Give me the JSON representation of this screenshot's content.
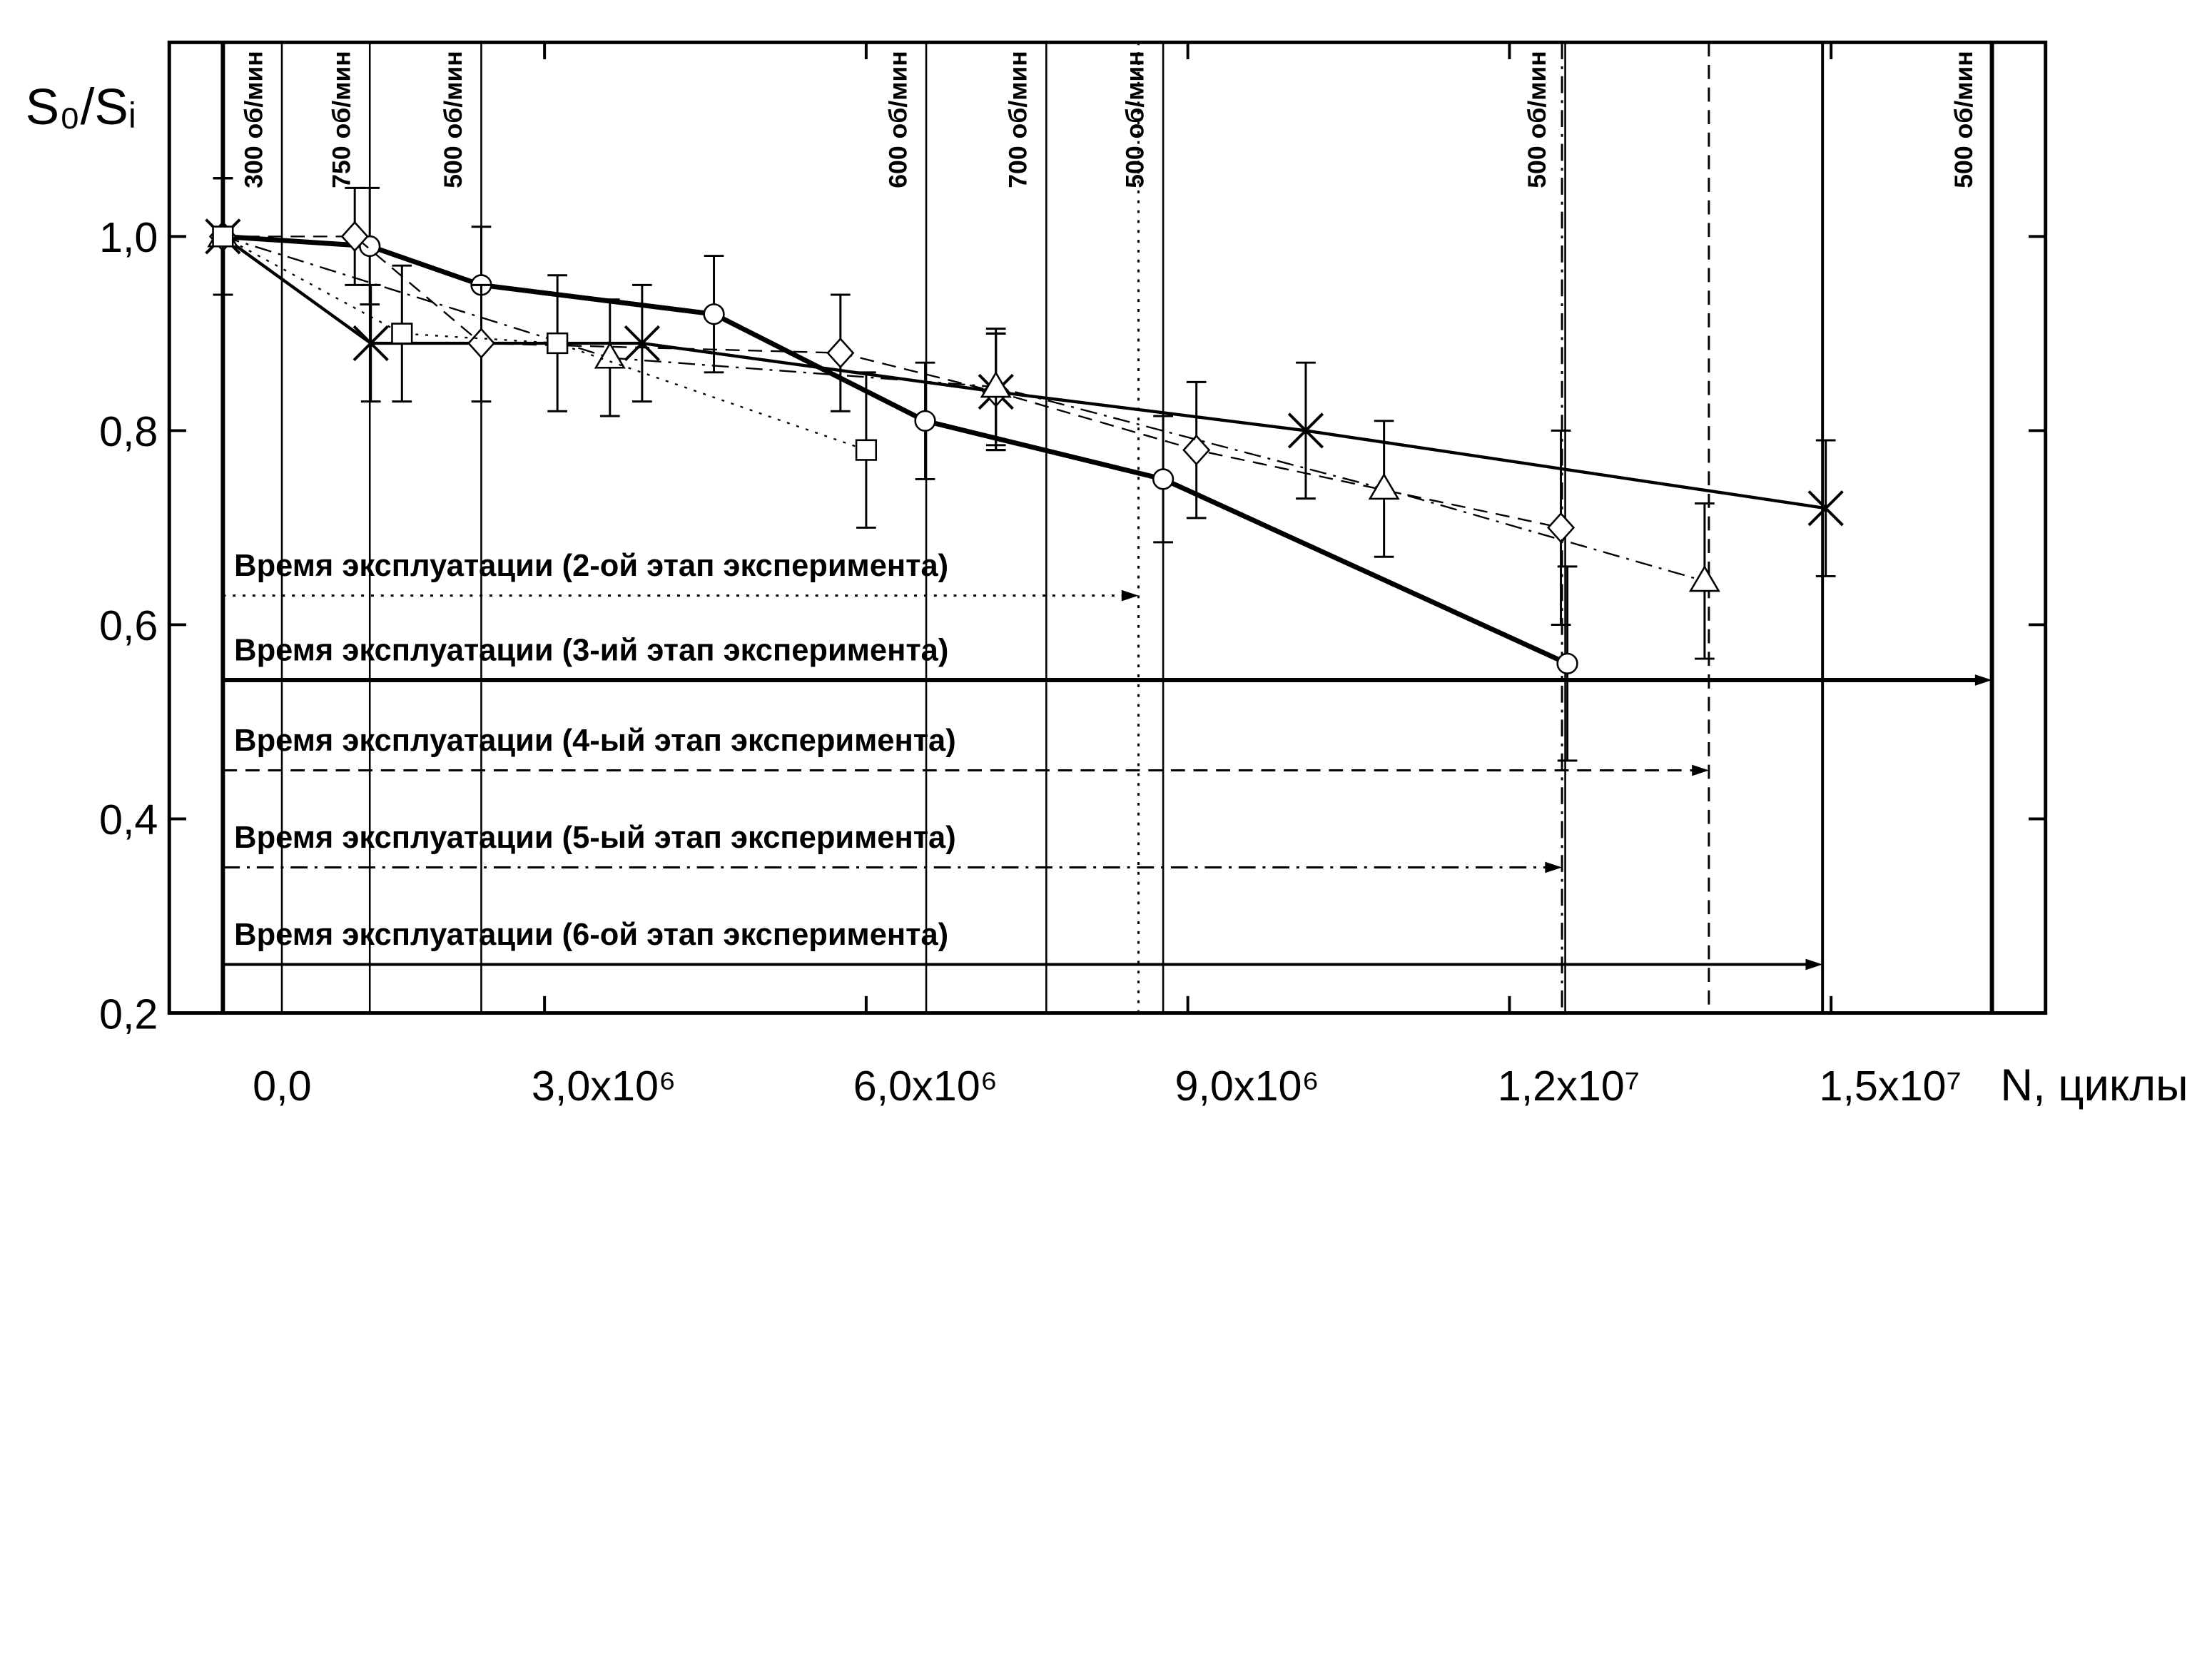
{
  "chart_data": {
    "type": "line",
    "y_label": "S₀/Sᵢ",
    "x_label": "N, циклы",
    "xlim": [
      -500000,
      17000000
    ],
    "ylim": [
      0.2,
      1.2
    ],
    "xticks": [
      {
        "value": 0,
        "label": "0,0"
      },
      {
        "value": 3000000,
        "label": "3,0x10⁶"
      },
      {
        "value": 6000000,
        "label": "6,0x10⁶"
      },
      {
        "value": 9000000,
        "label": "9,0x10⁶"
      },
      {
        "value": 12000000,
        "label": "1,2x10⁷"
      },
      {
        "value": 15000000,
        "label": "1,5x10⁷"
      }
    ],
    "yticks": [
      {
        "value": 0.2,
        "label": "0,2"
      },
      {
        "value": 0.4,
        "label": "0,4"
      },
      {
        "value": 0.6,
        "label": "0,6"
      },
      {
        "value": 0.8,
        "label": "0,8"
      },
      {
        "value": 1.0,
        "label": "1,0"
      }
    ],
    "color": "#000000",
    "series": [
      {
        "marker": "circle",
        "line": "solid",
        "width": 3.5,
        "x": [
          0,
          1370000,
          2410000,
          4580000,
          6550000,
          8770000,
          12540000
        ],
        "values": [
          1.0,
          0.99,
          0.95,
          0.92,
          0.81,
          0.75,
          0.56
        ],
        "errors": [
          0.06,
          0.06,
          0.06,
          0.06,
          0.06,
          0.065,
          0.1
        ]
      },
      {
        "marker": "cross",
        "line": "solid",
        "width": 2.2,
        "x": [
          0,
          1380000,
          3910000,
          7210000,
          10100000,
          14950000
        ],
        "values": [
          1.0,
          0.89,
          0.89,
          0.84,
          0.8,
          0.72
        ],
        "errors": [
          0.06,
          0.06,
          0.06,
          0.06,
          0.07,
          0.07
        ]
      },
      {
        "marker": "diamond",
        "line": "dashed",
        "width": 1.2,
        "x": [
          0,
          1230000,
          2410000,
          5760000,
          7210000,
          9080000,
          12480000
        ],
        "values": [
          1.0,
          1.0,
          0.89,
          0.88,
          0.84,
          0.78,
          0.7
        ],
        "errors": [
          0.06,
          0.05,
          0.06,
          0.06,
          0.06,
          0.07,
          0.1
        ]
      },
      {
        "marker": "triangle",
        "line": "dash-dot",
        "width": 1.2,
        "x": [
          0,
          3610000,
          7210000,
          10830000,
          13820000
        ],
        "values": [
          1.0,
          0.875,
          0.845,
          0.74,
          0.645
        ],
        "errors": [
          0.06,
          0.06,
          0.06,
          0.07,
          0.08
        ]
      },
      {
        "marker": "square",
        "line": "dotted",
        "width": 1.2,
        "x": [
          0,
          1670000,
          3120000,
          6000000
        ],
        "values": [
          1.0,
          0.9,
          0.89,
          0.78
        ],
        "errors": [
          0.06,
          0.07,
          0.07,
          0.08
        ]
      }
    ],
    "speed_changes": [
      {
        "x": 550000,
        "label": "300 об/мин"
      },
      {
        "x": 1370000,
        "label": "750 об/мин"
      },
      {
        "x": 2410000,
        "label": "500 об/мин"
      },
      {
        "x": 6560000,
        "label": "600 об/мин"
      },
      {
        "x": 7680000,
        "label": "700 об/мин"
      },
      {
        "x": 8770000,
        "label": "500 об/мин"
      },
      {
        "x": 12520000,
        "label": "500 об/мин"
      },
      {
        "x": 16500000,
        "label": "500 об/мин"
      }
    ],
    "stages": [
      {
        "label": "Время эксплуатации (2-ой этап эксперимента)",
        "y": 0.63,
        "end": 8540000,
        "line": "dotted",
        "width": 1.5
      },
      {
        "label": "Время эксплуатации (3-ий этап эксперимента)",
        "y": 0.543,
        "end": 16500000,
        "line": "solid",
        "width": 3
      },
      {
        "label": "Время эксплуатации (4-ый этап эксперимента)",
        "y": 0.45,
        "end": 13860000,
        "line": "dashed",
        "width": 1.5
      },
      {
        "label": "Время эксплуатации (5-ый этап эксперимента)",
        "y": 0.35,
        "end": 12490000,
        "line": "dash-dot",
        "width": 1.5
      },
      {
        "label": "Время эксплуатации (6-ой этап эксперимента)",
        "y": 0.25,
        "end": 14920000,
        "line": "solid",
        "width": 2
      }
    ]
  }
}
